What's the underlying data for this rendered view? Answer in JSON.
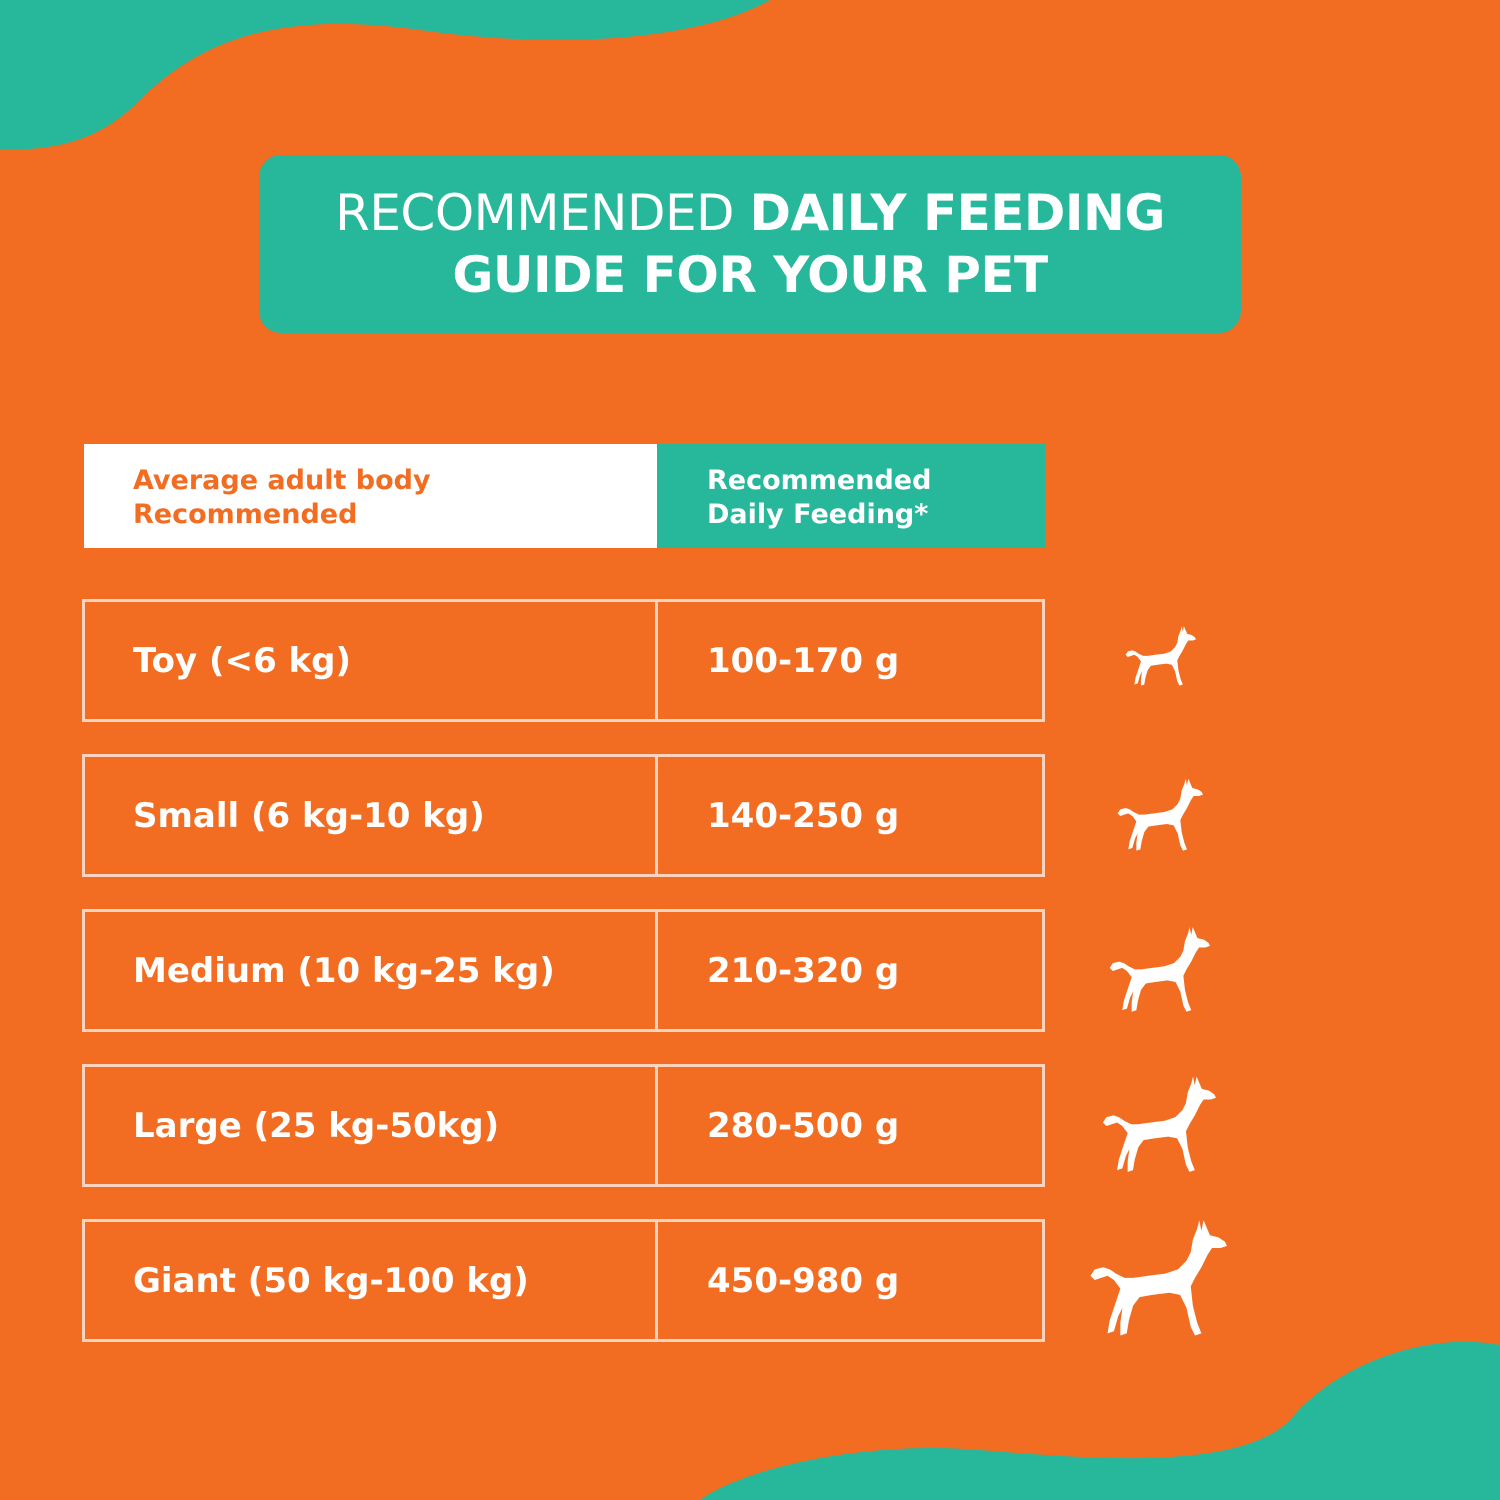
{
  "header": {
    "title_light": "RECOMMENDED",
    "title_bold_1": "DAILY FEEDING",
    "title_bold_2": "GUIDE FOR YOUR PET"
  },
  "table": {
    "columns": [
      {
        "line1": "Average adult body",
        "line2": "Recommended"
      },
      {
        "line1": "Recommended",
        "line2": "Daily Feeding*"
      }
    ],
    "rows": [
      {
        "size": "Toy (<6 kg)",
        "feeding": "100-170 g",
        "icon": "dog-icon"
      },
      {
        "size": "Small (6 kg-10 kg)",
        "feeding": "140-250 g",
        "icon": "dog-icon"
      },
      {
        "size": "Medium (10 kg-25 kg)",
        "feeding": "210-320 g",
        "icon": "dog-icon"
      },
      {
        "size": "Large (25 kg-50kg)",
        "feeding": "280-500 g",
        "icon": "dog-icon"
      },
      {
        "size": "Giant (50 kg-100 kg)",
        "feeding": "450-980 g",
        "icon": "dog-icon"
      }
    ]
  },
  "colors": {
    "background": "#f26d21",
    "accent": "#27b79b",
    "text": "#ffffff"
  }
}
